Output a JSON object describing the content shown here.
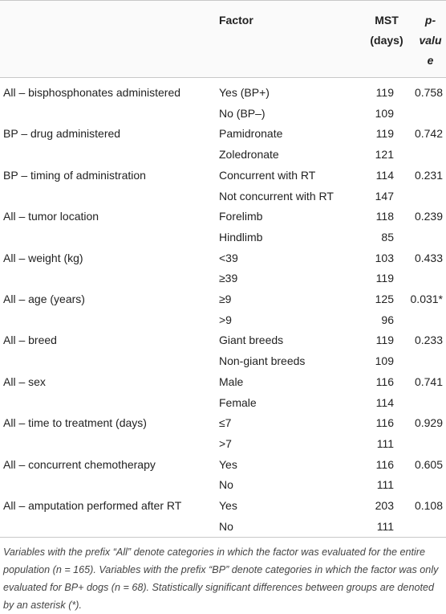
{
  "table": {
    "header": [
      "Factor",
      "MST (days)",
      "p-value"
    ],
    "groups": [
      {
        "variable": "All – bisphosphonates administered",
        "p": "0.758",
        "levels": [
          {
            "factor": "Yes (BP+)",
            "mst": 119
          },
          {
            "factor": "No (BP–)",
            "mst": 109
          }
        ]
      },
      {
        "variable": "BP – drug administered",
        "p": "0.742",
        "levels": [
          {
            "factor": "Pamidronate",
            "mst": 119
          },
          {
            "factor": "Zoledronate",
            "mst": 121
          }
        ]
      },
      {
        "variable": "BP – timing of administration",
        "p": "0.231",
        "levels": [
          {
            "factor": "Concurrent with RT",
            "mst": 114
          },
          {
            "factor": "Not concurrent with RT",
            "mst": 147
          }
        ]
      },
      {
        "variable": "All – tumor location",
        "p": "0.239",
        "levels": [
          {
            "factor": "Forelimb",
            "mst": 118
          },
          {
            "factor": "Hindlimb",
            "mst": 85
          }
        ]
      },
      {
        "variable": "All – weight (kg)",
        "p": "0.433",
        "levels": [
          {
            "factor": "<39",
            "mst": 103
          },
          {
            "factor": "≥39",
            "mst": 119
          }
        ]
      },
      {
        "variable": "All – age (years)",
        "p": "0.031*",
        "levels": [
          {
            "factor": "≥9",
            "mst": 125
          },
          {
            "factor": ">9",
            "mst": 96
          }
        ]
      },
      {
        "variable": "All – breed",
        "p": "0.233",
        "levels": [
          {
            "factor": "Giant breeds",
            "mst": 119
          },
          {
            "factor": "Non-giant breeds",
            "mst": 109
          }
        ]
      },
      {
        "variable": "All – sex",
        "p": "0.741",
        "levels": [
          {
            "factor": "Male",
            "mst": 116
          },
          {
            "factor": "Female",
            "mst": 114
          }
        ]
      },
      {
        "variable": "All – time to treatment (days)",
        "p": "0.929",
        "levels": [
          {
            "factor": "≤7",
            "mst": 116
          },
          {
            "factor": ">7",
            "mst": 111
          }
        ]
      },
      {
        "variable": "All – concurrent chemotherapy",
        "p": "0.605",
        "levels": [
          {
            "factor": "Yes",
            "mst": 116
          },
          {
            "factor": "No",
            "mst": 111
          }
        ]
      },
      {
        "variable": "All – amputation performed after RT",
        "p": "0.108",
        "levels": [
          {
            "factor": "Yes",
            "mst": 203
          },
          {
            "factor": "No",
            "mst": 111
          }
        ]
      }
    ],
    "footnote": "Variables with the prefix “All” denote categories in which the factor was evaluated for the entire population (n = 165). Variables with the prefix “BP” denote categories in which the factor was only evaluated for BP+ dogs (n = 68). Statistically significant differences between groups are denoted by an asterisk (*)."
  }
}
